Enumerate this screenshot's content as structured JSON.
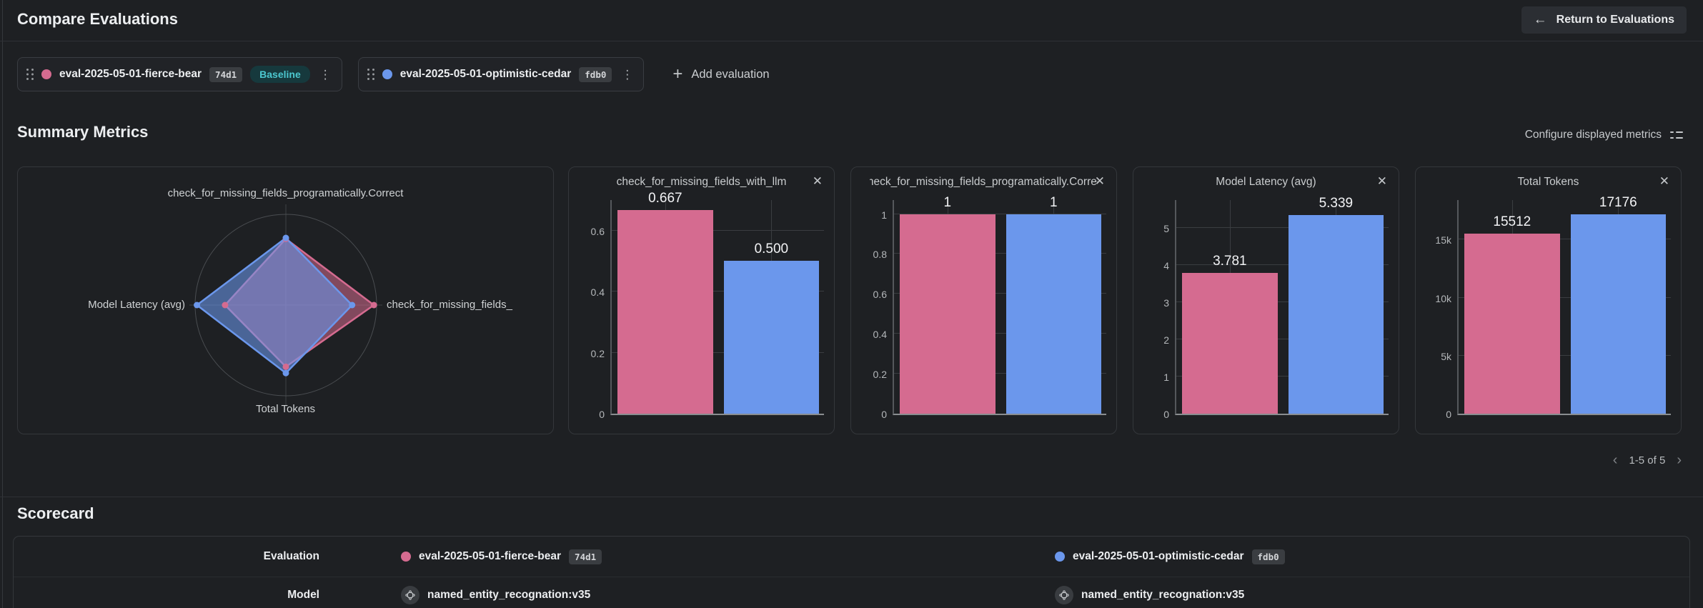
{
  "header": {
    "title": "Compare Evaluations",
    "return_label": "Return to Evaluations"
  },
  "evaluation_bar": {
    "add_label": "Add evaluation",
    "evaluations": [
      {
        "name": "eval-2025-05-01-fierce-bear",
        "id": "74d1",
        "badge": "Baseline",
        "color": "#d56b90"
      },
      {
        "name": "eval-2025-05-01-optimistic-cedar",
        "id": "fdb0",
        "color": "#6b97ec"
      }
    ]
  },
  "summary": {
    "title": "Summary Metrics",
    "configure_label": "Configure displayed metrics",
    "pagination": "1-5 of 5"
  },
  "scorecard": {
    "title": "Scorecard",
    "row_labels": [
      "Evaluation",
      "Model"
    ],
    "columns": [
      {
        "evaluation": "eval-2025-05-01-fierce-bear",
        "id": "74d1",
        "color": "#d56b90",
        "model": "named_entity_recognation:v35"
      },
      {
        "evaluation": "eval-2025-05-01-optimistic-cedar",
        "id": "fdb0",
        "color": "#6b97ec",
        "model": "named_entity_recognation:v35"
      }
    ]
  },
  "chart_data": [
    {
      "type": "radar",
      "axes": [
        "check_for_missing_fields_programatically.Correct",
        "check_for_missing_fields_",
        "Total Tokens",
        "Model Latency (avg)"
      ],
      "series": [
        {
          "name": "eval-2025-05-01-fierce-bear",
          "color": "#d56b90",
          "normalized": [
            0.73,
            0.97,
            0.68,
            0.67
          ],
          "raw": [
            1,
            0.667,
            15512,
            3.781
          ]
        },
        {
          "name": "eval-2025-05-01-optimistic-cedar",
          "color": "#6b97ec",
          "normalized": [
            0.74,
            0.73,
            0.75,
            0.98
          ],
          "raw": [
            1,
            0.5,
            17176,
            5.339
          ]
        }
      ]
    },
    {
      "type": "bar",
      "title": "check_for_missing_fields_with_llm",
      "ymax": 0.7,
      "yticks": [
        {
          "v": 0,
          "label": "0"
        },
        {
          "v": 0.2,
          "label": "0.2"
        },
        {
          "v": 0.4,
          "label": "0.4"
        },
        {
          "v": 0.6,
          "label": "0.6"
        }
      ],
      "series": [
        {
          "name": "eval-2025-05-01-fierce-bear",
          "color": "#d56b90",
          "value": 0.667,
          "label": "0.667"
        },
        {
          "name": "eval-2025-05-01-optimistic-cedar",
          "color": "#6b97ec",
          "value": 0.5,
          "label": "0.500"
        }
      ]
    },
    {
      "type": "bar",
      "title": "check_for_missing_fields_programatically.Correct",
      "ymax": 1.07,
      "yticks": [
        {
          "v": 0,
          "label": "0"
        },
        {
          "v": 0.2,
          "label": "0.2"
        },
        {
          "v": 0.4,
          "label": "0.4"
        },
        {
          "v": 0.6,
          "label": "0.6"
        },
        {
          "v": 0.8,
          "label": "0.8"
        },
        {
          "v": 1,
          "label": "1"
        }
      ],
      "series": [
        {
          "name": "eval-2025-05-01-fierce-bear",
          "color": "#d56b90",
          "value": 1,
          "label": "1"
        },
        {
          "name": "eval-2025-05-01-optimistic-cedar",
          "color": "#6b97ec",
          "value": 1,
          "label": "1"
        }
      ]
    },
    {
      "type": "bar",
      "title": "Model Latency (avg)",
      "ymax": 5.75,
      "yticks": [
        {
          "v": 0,
          "label": "0"
        },
        {
          "v": 1,
          "label": "1"
        },
        {
          "v": 2,
          "label": "2"
        },
        {
          "v": 3,
          "label": "3"
        },
        {
          "v": 4,
          "label": "4"
        },
        {
          "v": 5,
          "label": "5"
        }
      ],
      "series": [
        {
          "name": "eval-2025-05-01-fierce-bear",
          "color": "#d56b90",
          "value": 3.781,
          "label": "3.781"
        },
        {
          "name": "eval-2025-05-01-optimistic-cedar",
          "color": "#6b97ec",
          "value": 5.339,
          "label": "5.339"
        }
      ]
    },
    {
      "type": "bar",
      "title": "Total Tokens",
      "ymax": 18400,
      "yticks": [
        {
          "v": 0,
          "label": "0"
        },
        {
          "v": 5000,
          "label": "5k"
        },
        {
          "v": 10000,
          "label": "10k"
        },
        {
          "v": 15000,
          "label": "15k"
        }
      ],
      "series": [
        {
          "name": "eval-2025-05-01-fierce-bear",
          "color": "#d56b90",
          "value": 15512,
          "label": "15512"
        },
        {
          "name": "eval-2025-05-01-optimistic-cedar",
          "color": "#6b97ec",
          "value": 17176,
          "label": "17176"
        }
      ]
    }
  ]
}
